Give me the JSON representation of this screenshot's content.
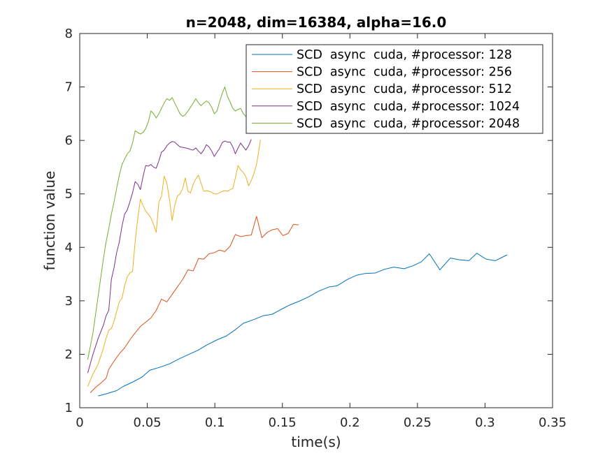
{
  "chart_data": {
    "type": "line",
    "title": "n=2048, dim=16384, alpha=16.0",
    "xlabel": "time(s)",
    "ylabel": "function value",
    "xlim": [
      0,
      0.35
    ],
    "ylim": [
      1,
      8
    ],
    "xticks": [
      0,
      0.05,
      0.1,
      0.15,
      0.2,
      0.25,
      0.3,
      0.35
    ],
    "xtick_labels": [
      "0",
      "0.05",
      "0.1",
      "0.15",
      "0.2",
      "0.25",
      "0.3",
      "0.35"
    ],
    "yticks": [
      1,
      2,
      3,
      4,
      5,
      6,
      7,
      8
    ],
    "ytick_labels": [
      "1",
      "2",
      "3",
      "4",
      "5",
      "6",
      "7",
      "8"
    ],
    "grid": false,
    "legend_position": "top-right",
    "series": [
      {
        "name": "SCD  async  cuda, #processor: 128",
        "color": "#0072BD",
        "x": [
          0.0137,
          0.0195,
          0.0273,
          0.0323,
          0.0391,
          0.0459,
          0.0518,
          0.0596,
          0.0664,
          0.0732,
          0.0801,
          0.0879,
          0.0937,
          0.1016,
          0.1084,
          0.1152,
          0.1211,
          0.1289,
          0.1357,
          0.1426,
          0.1484,
          0.1553,
          0.1631,
          0.1699,
          0.1768,
          0.1846,
          0.1904,
          0.1982,
          0.2051,
          0.2109,
          0.2188,
          0.2256,
          0.2324,
          0.2402,
          0.2471,
          0.2529,
          0.2588,
          0.2666,
          0.2744,
          0.2803,
          0.2881,
          0.2939,
          0.3008,
          0.3076,
          0.3164
        ],
        "y": [
          1.22,
          1.26,
          1.32,
          1.4,
          1.48,
          1.57,
          1.7,
          1.76,
          1.82,
          1.91,
          1.99,
          2.08,
          2.17,
          2.27,
          2.34,
          2.46,
          2.58,
          2.65,
          2.72,
          2.75,
          2.83,
          2.92,
          3.0,
          3.08,
          3.18,
          3.26,
          3.28,
          3.4,
          3.48,
          3.51,
          3.52,
          3.59,
          3.63,
          3.6,
          3.66,
          3.73,
          3.88,
          3.58,
          3.8,
          3.77,
          3.75,
          3.89,
          3.78,
          3.75,
          3.86
        ]
      },
      {
        "name": "SCD  async  cuda, #processor: 256",
        "color": "#D95319",
        "x": [
          0.0078,
          0.0117,
          0.0156,
          0.0195,
          0.0215,
          0.0254,
          0.0293,
          0.0332,
          0.0371,
          0.041,
          0.0449,
          0.0488,
          0.0527,
          0.0566,
          0.0605,
          0.0645,
          0.0684,
          0.0723,
          0.0762,
          0.0801,
          0.084,
          0.0879,
          0.0918,
          0.0957,
          0.0996,
          0.1035,
          0.1074,
          0.1113,
          0.1152,
          0.1191,
          0.123,
          0.127,
          0.1309,
          0.1348,
          0.1387,
          0.1426,
          0.1465,
          0.1504,
          0.1543,
          0.1582,
          0.1621
        ],
        "y": [
          1.28,
          1.38,
          1.46,
          1.55,
          1.72,
          1.87,
          2.01,
          2.12,
          2.27,
          2.4,
          2.52,
          2.6,
          2.68,
          2.82,
          3.03,
          2.98,
          3.12,
          3.26,
          3.4,
          3.58,
          3.56,
          3.79,
          3.78,
          3.88,
          3.9,
          3.95,
          3.92,
          4.02,
          4.24,
          4.2,
          4.22,
          4.23,
          4.58,
          4.18,
          4.28,
          4.33,
          4.35,
          4.22,
          4.26,
          4.43,
          4.42
        ]
      },
      {
        "name": "SCD  async  cuda, #processor: 512",
        "color": "#EDB120",
        "x": [
          0.0059,
          0.0098,
          0.0137,
          0.0176,
          0.0195,
          0.0215,
          0.0234,
          0.0254,
          0.0273,
          0.0293,
          0.0313,
          0.0332,
          0.0352,
          0.0371,
          0.0391,
          0.041,
          0.043,
          0.0449,
          0.0469,
          0.0488,
          0.0508,
          0.0527,
          0.0547,
          0.0566,
          0.0586,
          0.0605,
          0.0625,
          0.0645,
          0.0664,
          0.0684,
          0.0703,
          0.0723,
          0.0742,
          0.0762,
          0.0781,
          0.0801,
          0.082,
          0.084,
          0.0859,
          0.0879,
          0.0898,
          0.0918,
          0.0938,
          0.0957,
          0.0977,
          0.0996,
          0.1016,
          0.1035,
          0.1055,
          0.1074,
          0.1094,
          0.1113,
          0.1133,
          0.1152,
          0.1172,
          0.1191,
          0.1211,
          0.123,
          0.125,
          0.127,
          0.1289,
          0.1309,
          0.1328,
          0.1338
        ],
        "y": [
          1.4,
          1.63,
          1.82,
          2.12,
          2.3,
          2.45,
          2.48,
          2.62,
          2.8,
          2.98,
          3.05,
          3.28,
          3.45,
          3.52,
          3.55,
          4.1,
          4.55,
          4.9,
          4.78,
          4.68,
          4.62,
          4.55,
          4.42,
          4.28,
          4.85,
          4.95,
          5.33,
          5.2,
          4.9,
          4.5,
          4.78,
          4.96,
          5.0,
          5.1,
          5.3,
          5.05,
          5.02,
          5.18,
          5.28,
          5.35,
          5.2,
          5.05,
          5.06,
          5.05,
          5.03,
          5.0,
          5.0,
          5.02,
          5.05,
          5.06,
          5.05,
          5.08,
          5.1,
          5.3,
          5.53,
          5.45,
          5.4,
          5.32,
          5.15,
          5.25,
          5.38,
          5.55,
          5.85,
          6.01
        ]
      },
      {
        "name": "SCD  async  cuda, #processor: 1024",
        "color": "#7E2F8E",
        "x": [
          0.0059,
          0.0098,
          0.0137,
          0.0176,
          0.0195,
          0.0215,
          0.0234,
          0.0254,
          0.0273,
          0.0293,
          0.0313,
          0.0332,
          0.0352,
          0.0371,
          0.0391,
          0.041,
          0.043,
          0.0449,
          0.0469,
          0.0488,
          0.0508,
          0.0527,
          0.0547,
          0.0566,
          0.0586,
          0.0605,
          0.0625,
          0.0645,
          0.0664,
          0.0684,
          0.0703,
          0.0723,
          0.0742,
          0.0762,
          0.0781,
          0.0801,
          0.082,
          0.084,
          0.0859,
          0.0879,
          0.0898,
          0.0918,
          0.0938,
          0.0957,
          0.0977,
          0.0996,
          0.1016,
          0.1035,
          0.1055,
          0.1074,
          0.1094,
          0.1113,
          0.1133,
          0.1152,
          0.1172,
          0.1191,
          0.1211,
          0.123,
          0.125,
          0.127
        ],
        "y": [
          1.65,
          2.0,
          2.3,
          2.55,
          2.72,
          2.82,
          3.4,
          3.62,
          3.9,
          4.1,
          4.4,
          4.62,
          4.7,
          4.85,
          5.02,
          5.23,
          5.18,
          5.08,
          5.33,
          5.53,
          5.52,
          5.55,
          5.5,
          5.48,
          5.62,
          5.78,
          5.82,
          5.9,
          5.95,
          5.98,
          5.97,
          5.92,
          5.88,
          5.87,
          5.86,
          5.85,
          5.83,
          5.82,
          5.86,
          5.8,
          5.75,
          5.82,
          5.92,
          5.88,
          5.8,
          5.7,
          5.78,
          5.85,
          5.96,
          5.99,
          5.97,
          5.97,
          5.88,
          5.75,
          5.86,
          5.95,
          5.88,
          5.82,
          5.9,
          6.02
        ]
      },
      {
        "name": "SCD  async  cuda, #processor: 2048",
        "color": "#77AC30",
        "x": [
          0.0059,
          0.0098,
          0.0137,
          0.0176,
          0.0195,
          0.0215,
          0.0234,
          0.0254,
          0.0273,
          0.0293,
          0.0313,
          0.0332,
          0.0352,
          0.0371,
          0.0391,
          0.041,
          0.043,
          0.0449,
          0.0469,
          0.0488,
          0.0508,
          0.0527,
          0.0547,
          0.0566,
          0.0586,
          0.0605,
          0.0625,
          0.0645,
          0.0664,
          0.0684,
          0.0703,
          0.0723,
          0.0742,
          0.0762,
          0.0781,
          0.0801,
          0.082,
          0.084,
          0.0859,
          0.0879,
          0.0898,
          0.0918,
          0.0938,
          0.0957,
          0.0977,
          0.0996,
          0.1016,
          0.1035,
          0.1055,
          0.1074,
          0.1094,
          0.1113,
          0.1133,
          0.1152,
          0.1172,
          0.1191,
          0.1211,
          0.123,
          0.125,
          0.126
        ],
        "y": [
          1.9,
          2.4,
          3.1,
          3.8,
          4.1,
          4.35,
          4.62,
          4.85,
          5.1,
          5.35,
          5.55,
          5.65,
          5.75,
          5.8,
          5.95,
          6.18,
          6.15,
          6.12,
          6.15,
          6.22,
          6.35,
          6.55,
          6.5,
          6.42,
          6.5,
          6.6,
          6.7,
          6.78,
          6.75,
          6.8,
          6.7,
          6.6,
          6.5,
          6.45,
          6.48,
          6.55,
          6.62,
          6.7,
          6.78,
          6.7,
          6.65,
          6.7,
          6.74,
          6.7,
          6.62,
          6.5,
          6.55,
          6.72,
          6.88,
          7.0,
          6.82,
          6.72,
          6.6,
          6.55,
          6.58,
          6.6,
          6.5,
          6.45,
          6.38,
          6.36
        ]
      }
    ]
  }
}
